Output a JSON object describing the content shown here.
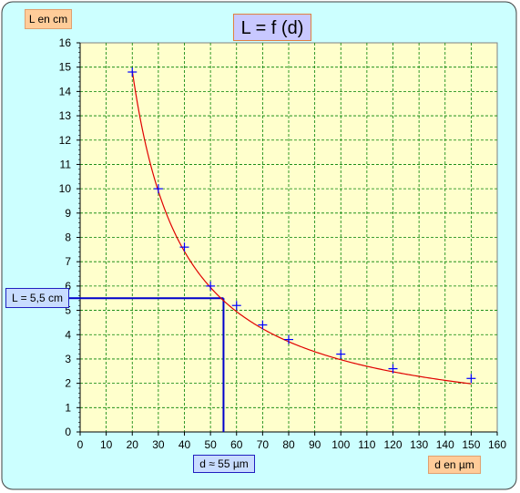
{
  "chart_data": {
    "type": "scatter",
    "title": "L = f (d)",
    "xlabel": "d en µm",
    "ylabel": "L en cm",
    "xlim": [
      0,
      160
    ],
    "ylim": [
      0,
      16
    ],
    "x_ticks": [
      "0",
      "10",
      "20",
      "30",
      "40",
      "50",
      "60",
      "70",
      "80",
      "90",
      "100",
      "110",
      "120",
      "130",
      "140",
      "150",
      "160"
    ],
    "y_ticks": [
      "0",
      "1",
      "2",
      "3",
      "4",
      "5",
      "6",
      "7",
      "8",
      "9",
      "10",
      "11",
      "12",
      "13",
      "14",
      "15",
      "16"
    ],
    "grid": true,
    "points": {
      "x": [
        20,
        30,
        40,
        50,
        60,
        70,
        80,
        100,
        120,
        150
      ],
      "y": [
        14.8,
        10.0,
        7.6,
        6.0,
        5.2,
        4.4,
        3.8,
        3.2,
        2.6,
        2.2
      ]
    },
    "fit_curve": {
      "type": "hyperbola",
      "k": 297
    },
    "annotation": {
      "x": 55,
      "y": 5.5,
      "y_label": "L = 5,5 cm",
      "x_label": "d ≈ 55 µm"
    }
  },
  "colors": {
    "frame_bg": "#ccffff",
    "plot_bg": "#ffffcc",
    "grid": "#008000",
    "curve": "#e00000",
    "marker": "#0000ff",
    "annotation_line": "#0000cc"
  }
}
